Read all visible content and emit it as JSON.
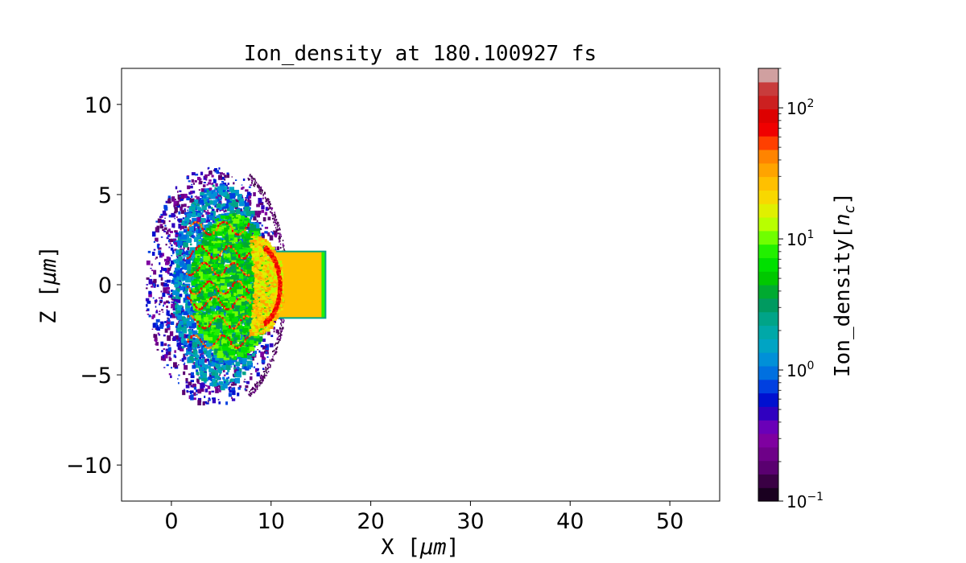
{
  "chart_data": {
    "type": "heatmap",
    "title": "Ion_density at 180.100927 fs",
    "xlabel": "X",
    "xlabel_unit": "μm",
    "ylabel": "Z",
    "ylabel_unit": "μm",
    "xlim": [
      -5,
      55
    ],
    "ylim": [
      -12,
      12
    ],
    "x_ticks": [
      0,
      10,
      20,
      30,
      40,
      50
    ],
    "x_tick_labels": [
      "0",
      "10",
      "20",
      "30",
      "40",
      "50"
    ],
    "y_ticks": [
      10,
      5,
      0,
      -5,
      -10
    ],
    "y_tick_labels": [
      "10",
      "5",
      "0",
      "−5",
      "−10"
    ],
    "colorbar": {
      "label": "Ion_density",
      "unit": "n",
      "unit_subscript": "c",
      "scale": "log",
      "range": [
        0.1,
        200
      ],
      "ticks": [
        0.1,
        1,
        10,
        100
      ],
      "tick_bases": [
        "10",
        "10",
        "10",
        "10"
      ],
      "tick_exponents": [
        "−1",
        "0",
        "1",
        "2"
      ],
      "colors": [
        "#1a0020",
        "#3a0044",
        "#5a0070",
        "#6e0088",
        "#7f00a0",
        "#6a00b8",
        "#3000c0",
        "#0010d0",
        "#0040e0",
        "#0070e0",
        "#0090d8",
        "#00a4c4",
        "#00a8a8",
        "#00a488",
        "#009a60",
        "#00aa30",
        "#00c800",
        "#00e000",
        "#22f000",
        "#70ff00",
        "#b8ff00",
        "#e0f000",
        "#f8d800",
        "#ffc000",
        "#ffa400",
        "#ff8400",
        "#ff4000",
        "#f00000",
        "#dd0000",
        "#cc2020",
        "#c83c3c",
        "#d0a0a0"
      ]
    },
    "target": {
      "x_range": [
        10,
        15.3
      ],
      "z_range": [
        -1.8,
        1.8
      ],
      "density": 30
    },
    "plasma_extent": {
      "x_range": [
        -3,
        12
      ],
      "z_range": [
        -6.5,
        6.5
      ]
    },
    "grid": false
  }
}
